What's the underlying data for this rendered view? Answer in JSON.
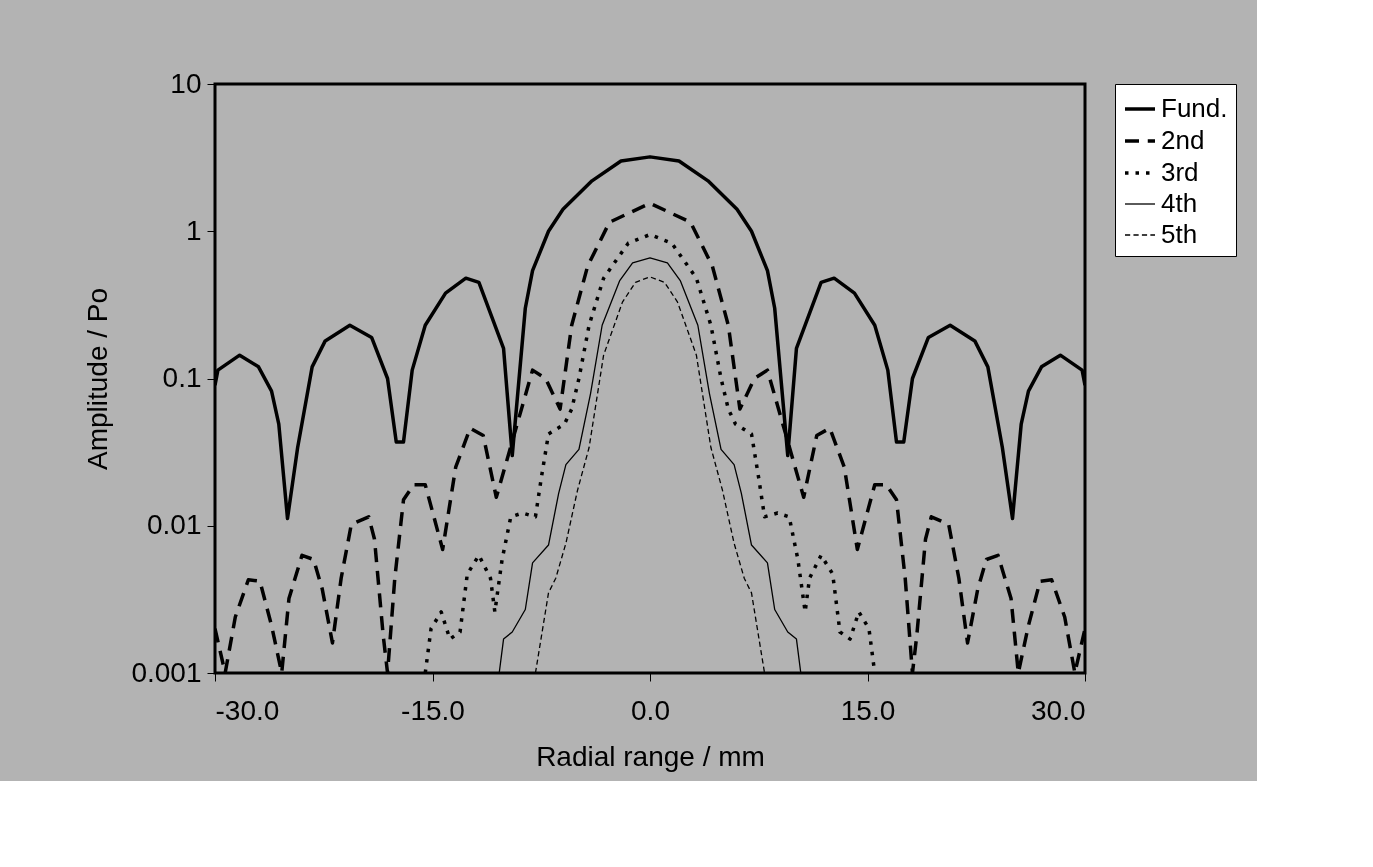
{
  "chart_data": {
    "type": "line",
    "xlabel": "Radial range / mm",
    "ylabel": "Amplitude / Po",
    "xlim": [
      -30,
      30
    ],
    "ylim": [
      0.001,
      10
    ],
    "log": "y",
    "grid": false,
    "legend": "right",
    "marker": "none",
    "xticks": [
      {
        "value": -30,
        "label": "-30.0"
      },
      {
        "value": -15,
        "label": "-15.0"
      },
      {
        "value": 0,
        "label": "0.0"
      },
      {
        "value": 15,
        "label": "15.0"
      },
      {
        "value": 30,
        "label": "30.0"
      }
    ],
    "yticks": [
      0.001,
      0.01,
      0.1,
      1,
      10
    ],
    "series": [
      {
        "name": "Fund.",
        "color": "#000000",
        "line_style": "solid",
        "x": [
          -30,
          -29.8,
          -28.3,
          -27.0,
          -26.1,
          -25.6,
          -25.0,
          -24.3,
          -23.3,
          -22.4,
          -20.7,
          -19.2,
          -18.1,
          -17.5,
          -17.0,
          -16.4,
          -15.5,
          -14.1,
          -12.7,
          -11.8,
          -10.1,
          -9.5,
          -8.6,
          -8.1,
          -7,
          -6,
          -4,
          -2,
          0,
          2,
          4,
          6,
          7,
          8.1,
          8.6,
          9.5,
          10.1,
          11.8,
          12.7,
          14.1,
          15.5,
          16.4,
          17.0,
          17.5,
          18.1,
          19.2,
          20.7,
          22.4,
          23.3,
          24.3,
          25.0,
          25.6,
          26.1,
          27.0,
          28.3,
          29.8,
          30
        ],
        "values": [
          0.09,
          0.114,
          0.144,
          0.12,
          0.082,
          0.049,
          0.0112,
          0.034,
          0.12,
          0.18,
          0.23,
          0.19,
          0.1,
          0.037,
          0.037,
          0.114,
          0.23,
          0.38,
          0.48,
          0.45,
          0.16,
          0.03,
          0.3,
          0.54,
          1.0,
          1.41,
          2.2,
          3.0,
          3.2,
          3.0,
          2.2,
          1.41,
          1.0,
          0.54,
          0.3,
          0.03,
          0.16,
          0.45,
          0.48,
          0.38,
          0.23,
          0.114,
          0.037,
          0.037,
          0.1,
          0.19,
          0.23,
          0.18,
          0.12,
          0.034,
          0.0112,
          0.049,
          0.082,
          0.12,
          0.144,
          0.114,
          0.09
        ]
      },
      {
        "name": "2nd",
        "color": "#000000",
        "line_style": "dashed",
        "x": [
          -30,
          -29.3,
          -28.6,
          -27.7,
          -26.9,
          -26.1,
          -25.4,
          -24.9,
          -24.0,
          -23.2,
          -22.6,
          -21.9,
          -21.3,
          -20.6,
          -19.4,
          -19.0,
          -18.4,
          -18.1,
          -17.6,
          -17.0,
          -16.3,
          -15.5,
          -14.3,
          -13.4,
          -12.4,
          -11.5,
          -10.6,
          -8.1,
          -7.2,
          -6.2,
          -5.4,
          -4.3,
          -2.8,
          0,
          2.8,
          4.3,
          5.4,
          6.2,
          7.2,
          8.1,
          10.6,
          11.5,
          12.4,
          13.4,
          14.3,
          15.5,
          16.3,
          17.0,
          17.6,
          18.1,
          18.4,
          19.0,
          19.4,
          20.6,
          21.3,
          21.9,
          22.6,
          23.2,
          24.0,
          24.9,
          25.4,
          26.1,
          26.9,
          27.7,
          28.6,
          29.3,
          30
        ],
        "values": [
          0.002,
          0.001,
          0.0024,
          0.0043,
          0.0042,
          0.0021,
          0.001,
          0.0032,
          0.0063,
          0.0059,
          0.0037,
          0.0016,
          0.0044,
          0.0102,
          0.0115,
          0.0081,
          0.0018,
          0.001,
          0.0044,
          0.015,
          0.019,
          0.019,
          0.0069,
          0.025,
          0.046,
          0.041,
          0.0156,
          0.114,
          0.1,
          0.062,
          0.23,
          0.58,
          1.15,
          1.55,
          1.15,
          0.58,
          0.23,
          0.062,
          0.1,
          0.114,
          0.0156,
          0.041,
          0.046,
          0.025,
          0.0069,
          0.019,
          0.019,
          0.015,
          0.0044,
          0.001,
          0.0018,
          0.0081,
          0.0115,
          0.0102,
          0.0044,
          0.0016,
          0.0037,
          0.0059,
          0.0063,
          0.0032,
          0.001,
          0.0021,
          0.0042,
          0.0043,
          0.0024,
          0.001,
          0.002
        ]
      },
      {
        "name": "3rd",
        "color": "#000000",
        "line_style": "dotted",
        "x": [
          -15.5,
          -15.1,
          -14.4,
          -13.8,
          -13.1,
          -12.6,
          -11.8,
          -11.0,
          -10.7,
          -10.2,
          -9.6,
          -8.8,
          -7.9,
          -7.5,
          -7.0,
          -5.9,
          -5.4,
          -4.9,
          -4.2,
          -3.2,
          -1.5,
          0,
          1.5,
          3.2,
          4.2,
          4.9,
          5.4,
          5.9,
          7.0,
          7.5,
          7.9,
          8.8,
          9.6,
          10.2,
          10.7,
          11.0,
          11.8,
          12.6,
          13.1,
          13.8,
          14.4,
          15.1,
          15.5
        ],
        "values": [
          0.001,
          0.002,
          0.0026,
          0.0017,
          0.0019,
          0.0047,
          0.0063,
          0.0044,
          0.0026,
          0.0059,
          0.0115,
          0.0122,
          0.0115,
          0.021,
          0.042,
          0.049,
          0.062,
          0.1,
          0.23,
          0.48,
          0.83,
          0.95,
          0.83,
          0.48,
          0.23,
          0.1,
          0.062,
          0.049,
          0.042,
          0.021,
          0.0115,
          0.0122,
          0.0115,
          0.0059,
          0.0026,
          0.0044,
          0.0063,
          0.0047,
          0.0019,
          0.0017,
          0.0026,
          0.002,
          0.001
        ]
      },
      {
        "name": "4th",
        "color": "#000000",
        "line_style": "solid",
        "x": [
          -10.4,
          -10.1,
          -9.5,
          -8.6,
          -8.1,
          -7.0,
          -6.3,
          -5.8,
          -4.9,
          -4.1,
          -3.3,
          -2.1,
          -1.2,
          0,
          1.2,
          2.1,
          3.3,
          4.1,
          4.9,
          5.8,
          6.3,
          7.0,
          8.1,
          8.6,
          9.5,
          10.1,
          10.4
        ],
        "values": [
          0.001,
          0.0017,
          0.0019,
          0.0027,
          0.0056,
          0.0074,
          0.0166,
          0.026,
          0.033,
          0.079,
          0.23,
          0.46,
          0.61,
          0.66,
          0.61,
          0.46,
          0.23,
          0.079,
          0.033,
          0.026,
          0.0166,
          0.0074,
          0.0056,
          0.0027,
          0.0019,
          0.0017,
          0.001
        ]
      },
      {
        "name": "5th",
        "color": "#000000",
        "line_style": "dashed",
        "x": [
          -7.9,
          -7.0,
          -6.5,
          -5.8,
          -5.0,
          -4.2,
          -3.2,
          -1.9,
          -1.0,
          0,
          1.0,
          1.9,
          3.2,
          4.2,
          5.0,
          5.8,
          6.5,
          7.0,
          7.9
        ],
        "values": [
          0.001,
          0.0035,
          0.0044,
          0.0076,
          0.0174,
          0.034,
          0.144,
          0.33,
          0.45,
          0.49,
          0.45,
          0.33,
          0.144,
          0.034,
          0.0174,
          0.0076,
          0.0044,
          0.0035,
          0.001
        ]
      }
    ]
  }
}
